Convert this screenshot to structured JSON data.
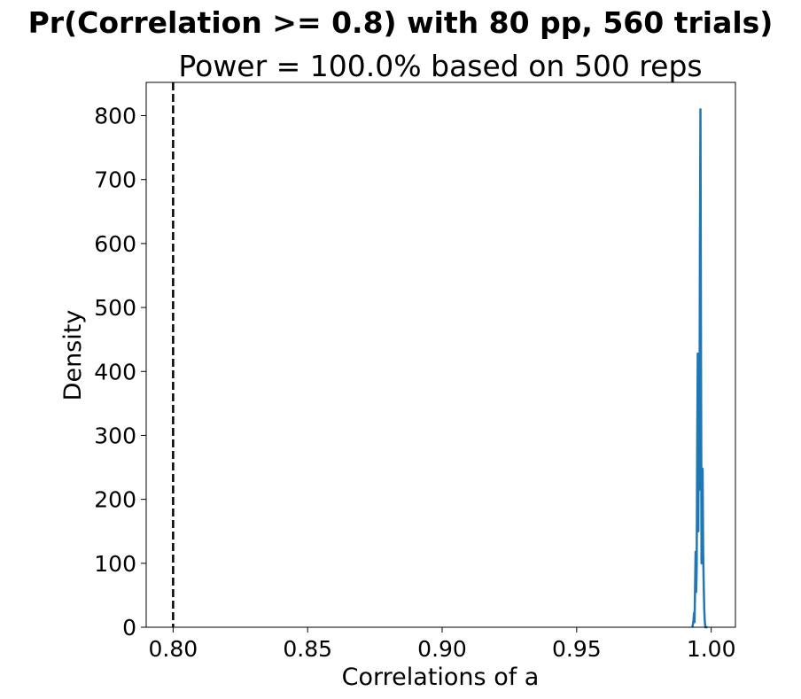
{
  "chart_data": {
    "type": "line",
    "title": "Pr(Correlation >= 0.8) with 80 pp, 560 trials)",
    "subtitle": "Power = 100.0% based on 500 reps",
    "xlabel": "Correlations of a",
    "ylabel": "Density",
    "xlim": [
      0.79,
      1.009
    ],
    "ylim": [
      0,
      852
    ],
    "xticks": [
      0.8,
      0.85,
      0.9,
      0.95,
      1.0
    ],
    "xtick_labels": [
      "0.80",
      "0.85",
      "0.90",
      "0.95",
      "1.00"
    ],
    "yticks": [
      0,
      100,
      200,
      300,
      400,
      500,
      600,
      700,
      800
    ],
    "ytick_labels": [
      "0",
      "100",
      "200",
      "300",
      "400",
      "500",
      "600",
      "700",
      "800"
    ],
    "grid": false,
    "threshold": {
      "x": 0.8,
      "style": "dashed",
      "color": "#000000"
    },
    "series": [
      {
        "color": "#1f77b4",
        "x": [
          0.993,
          0.9934,
          0.9936,
          0.9938,
          0.994,
          0.9942,
          0.9944,
          0.9946,
          0.9948,
          0.995,
          0.9952,
          0.9954,
          0.9956,
          0.9958,
          0.996,
          0.9962,
          0.9964,
          0.9966,
          0.9968,
          0.997,
          0.9972,
          0.9974,
          0.9976,
          0.9978,
          0.998,
          0.9982,
          0.9984,
          0.9986
        ],
        "y": [
          0,
          10,
          22,
          8,
          60,
          118,
          55,
          95,
          290,
          428,
          150,
          380,
          215,
          590,
          810,
          430,
          100,
          210,
          248,
          120,
          70,
          30,
          10,
          0,
          0,
          0,
          0,
          0
        ]
      }
    ]
  }
}
